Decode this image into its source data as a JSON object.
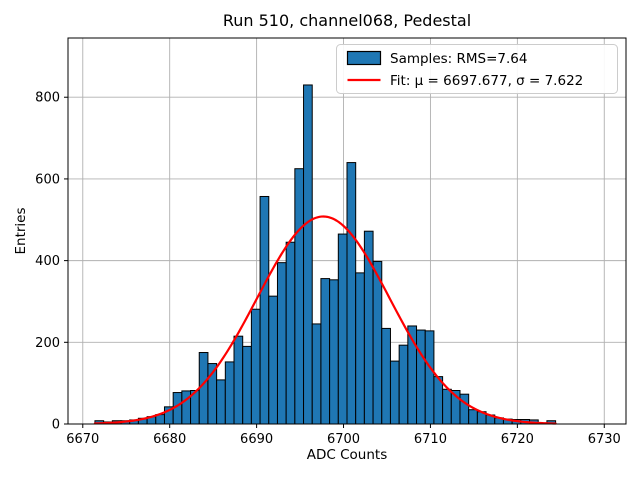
{
  "title": "Run 510, channel068, Pedestal",
  "chart_data": {
    "type": "bar",
    "subtype": "histogram",
    "title": "Run 510, channel068, Pedestal",
    "xlabel": "ADC Counts",
    "ylabel": "Entries",
    "xlim": [
      6668.3,
      6732.5
    ],
    "ylim": [
      0,
      945
    ],
    "xticks": [
      6670,
      6680,
      6690,
      6700,
      6710,
      6720,
      6730
    ],
    "yticks": [
      0,
      200,
      400,
      600,
      800
    ],
    "grid": true,
    "bin_start": 6671.4,
    "bin_width": 1,
    "values": [
      8,
      5,
      8,
      8,
      10,
      14,
      18,
      23,
      42,
      77,
      81,
      82,
      175,
      148,
      108,
      152,
      215,
      190,
      281,
      557,
      313,
      395,
      445,
      625,
      830,
      245,
      356,
      353,
      465,
      640,
      370,
      472,
      398,
      234,
      154,
      193,
      240,
      230,
      228,
      116,
      85,
      82,
      73,
      35,
      30,
      22,
      15,
      12,
      11,
      11,
      10,
      0,
      8
    ],
    "fit": {
      "type": "gaussian",
      "mu": 6697.677,
      "sigma": 7.622,
      "amplitude": 508
    },
    "legend": {
      "position": "upper right",
      "entries": [
        {
          "label": "Samples: RMS=7.64",
          "swatch": "bar",
          "color": "#1f77b4"
        },
        {
          "label": "Fit: μ = 6697.677, σ = 7.622",
          "swatch": "line",
          "color": "#ff0000"
        }
      ]
    },
    "colors": {
      "bar_fill": "#1f77b4",
      "bar_edge": "#000000",
      "fit_line": "#ff0000",
      "grid": "#b0b0b0",
      "frame": "#000000",
      "background": "#ffffff",
      "legend_border": "#cccccc"
    }
  }
}
